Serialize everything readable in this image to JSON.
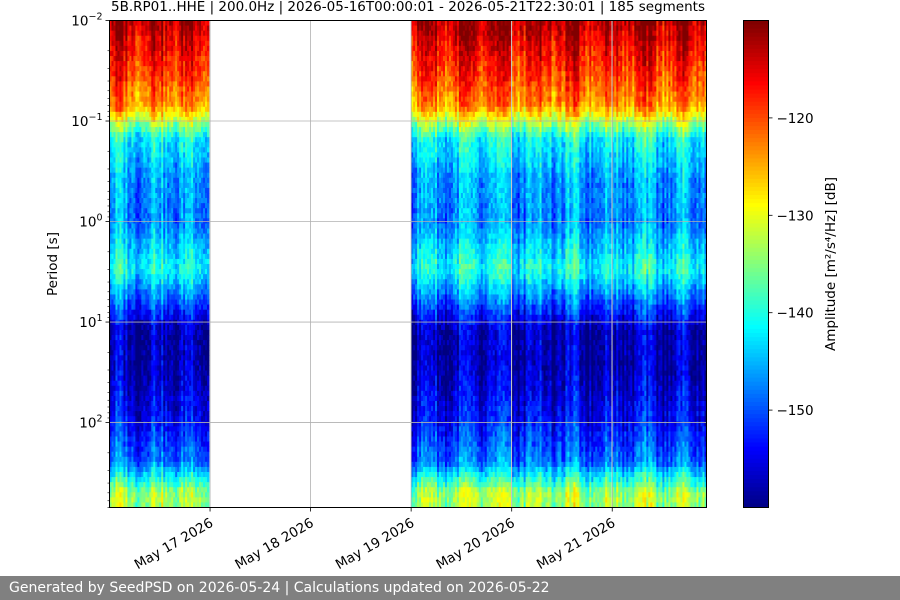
{
  "chart_data": {
    "type": "heatmap",
    "title": "5B.RP01..HHE | 200.0Hz | 2026-05-16T00:00:01 - 2026-05-21T22:30:01 | 185 segments",
    "ylabel": "Period [s]",
    "colorbar_label": "Amplitude [m²/s⁴/Hz] [dB]",
    "x_range": [
      "2026-05-16T00:00:01",
      "2026-05-21T22:30:01"
    ],
    "x_tick_labels": [
      "May 17 2026",
      "May 18 2026",
      "May 19 2026",
      "May 20 2026",
      "May 21 2026"
    ],
    "x_tick_dates": [
      "2026-05-17",
      "2026-05-18",
      "2026-05-19",
      "2026-05-20",
      "2026-05-21"
    ],
    "y_scale": "log",
    "y_inverted": true,
    "y_range_s": [
      0.01,
      700
    ],
    "y_tick_labels": [
      {
        "base": "10",
        "exp": "−2"
      },
      {
        "base": "10",
        "exp": "−1"
      },
      {
        "base": "10",
        "exp": "0"
      },
      {
        "base": "10",
        "exp": "1"
      },
      {
        "base": "10",
        "exp": "2"
      }
    ],
    "y_tick_values": [
      0.01,
      0.1,
      1,
      10,
      100
    ],
    "colorbar_ticks": [
      "−120",
      "−130",
      "−140",
      "−150"
    ],
    "colorbar_tick_values": [
      -120,
      -130,
      -140,
      -150
    ],
    "colorbar_range_db": [
      -160,
      -110
    ],
    "colormap": "jet",
    "grid": true,
    "data_segments": [
      {
        "start": "2026-05-16T00:00:01",
        "end": "2026-05-16T23:45:00"
      },
      {
        "start": "2026-05-19T00:00:00",
        "end": "2026-05-19T23:45:00"
      },
      {
        "start": "2026-05-20T00:00:00",
        "end": "2026-05-20T23:45:00"
      },
      {
        "start": "2026-05-21T00:00:00",
        "end": "2026-05-21T22:30:01"
      }
    ],
    "amplitude_profile_db": [
      {
        "period_s": 0.01,
        "db": -112
      },
      {
        "period_s": 0.03,
        "db": -118
      },
      {
        "period_s": 0.07,
        "db": -123
      },
      {
        "period_s": 0.15,
        "db": -141
      },
      {
        "period_s": 0.4,
        "db": -146
      },
      {
        "period_s": 1.0,
        "db": -147
      },
      {
        "period_s": 3.0,
        "db": -140
      },
      {
        "period_s": 8.0,
        "db": -152
      },
      {
        "period_s": 12.0,
        "db": -157
      },
      {
        "period_s": 30.0,
        "db": -157
      },
      {
        "period_s": 100.0,
        "db": -153
      },
      {
        "period_s": 250.0,
        "db": -148
      },
      {
        "period_s": 500.0,
        "db": -133
      }
    ]
  },
  "footer": {
    "text": "Generated by SeedPSD on 2026-05-24 | Calculations updated on 2026-05-22"
  }
}
